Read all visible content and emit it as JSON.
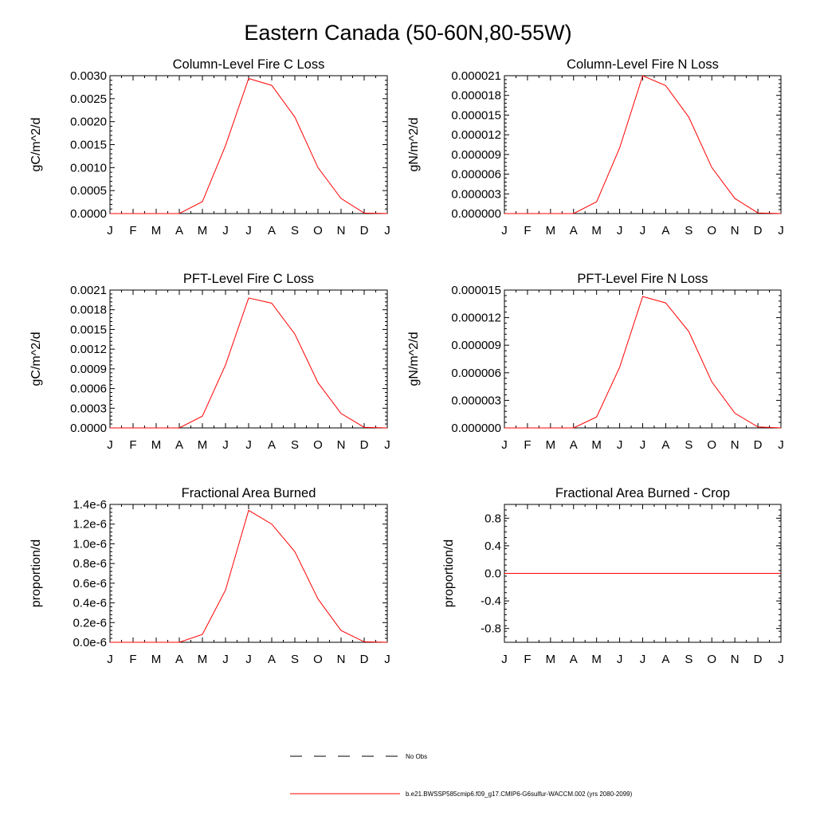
{
  "main_title": "Eastern Canada (50-60N,80-55W)",
  "legend": {
    "entries": [
      {
        "label": "No Obs",
        "style": "dashed",
        "color": "#000000"
      },
      {
        "label": "b.e21.BWSSP585cmip6.f09_g17.CMIP6-G6sulfur-WACCM.002 (yrs 2080-2099)",
        "style": "solid",
        "color": "#ff0000"
      }
    ]
  },
  "colors": {
    "series": "#ff0000",
    "axes": "#000000"
  },
  "chart_data": [
    {
      "type": "line",
      "title": "Column-Level Fire C Loss",
      "ylabel": "gC/m^2/d",
      "x": [
        "J",
        "F",
        "M",
        "A",
        "M",
        "J",
        "J",
        "A",
        "S",
        "O",
        "N",
        "D",
        "J"
      ],
      "ylim": [
        0,
        0.003
      ],
      "yticks": [
        0,
        0.0005,
        0.001,
        0.0015,
        0.002,
        0.0025,
        0.003
      ],
      "ytick_labels": [
        "0.0000",
        "0.0005",
        "0.0010",
        "0.0015",
        "0.0020",
        "0.0025",
        "0.0030"
      ],
      "series": [
        {
          "values": [
            0,
            0,
            0,
            0,
            0.00026,
            0.00148,
            0.00294,
            0.00279,
            0.0021,
            0.001,
            0.00033,
            1e-05,
            0
          ]
        }
      ]
    },
    {
      "type": "line",
      "title": "Column-Level Fire N Loss",
      "ylabel": "gN/m^2/d",
      "x": [
        "J",
        "F",
        "M",
        "A",
        "M",
        "J",
        "J",
        "A",
        "S",
        "O",
        "N",
        "D",
        "J"
      ],
      "ylim": [
        0,
        2.1e-05
      ],
      "yticks": [
        0,
        3e-06,
        6e-06,
        9e-06,
        1.2e-05,
        1.5e-05,
        1.8e-05,
        2.1e-05
      ],
      "ytick_labels": [
        "0.000000",
        "0.000003",
        "0.000006",
        "0.000009",
        "0.000012",
        "0.000015",
        "0.000018",
        "0.000021"
      ],
      "series": [
        {
          "values": [
            0,
            0,
            0,
            0,
            1.8e-06,
            1e-05,
            2.1e-05,
            1.95e-05,
            1.47e-05,
            7e-06,
            2.3e-06,
            1e-07,
            0
          ]
        }
      ]
    },
    {
      "type": "line",
      "title": "PFT-Level Fire C Loss",
      "ylabel": "gC/m^2/d",
      "x": [
        "J",
        "F",
        "M",
        "A",
        "M",
        "J",
        "J",
        "A",
        "S",
        "O",
        "N",
        "D",
        "J"
      ],
      "ylim": [
        0,
        0.0021
      ],
      "yticks": [
        0,
        0.0003,
        0.0006,
        0.0009,
        0.0012,
        0.0015,
        0.0018,
        0.0021
      ],
      "ytick_labels": [
        "0.0000",
        "0.0003",
        "0.0006",
        "0.0009",
        "0.0012",
        "0.0015",
        "0.0018",
        "0.0021"
      ],
      "series": [
        {
          "values": [
            0,
            0,
            0,
            0,
            0.00018,
            0.00096,
            0.00198,
            0.0019,
            0.00143,
            0.00069,
            0.00022,
            1e-05,
            0
          ]
        }
      ]
    },
    {
      "type": "line",
      "title": "PFT-Level Fire N Loss",
      "ylabel": "gN/m^2/d",
      "x": [
        "J",
        "F",
        "M",
        "A",
        "M",
        "J",
        "J",
        "A",
        "S",
        "O",
        "N",
        "D",
        "J"
      ],
      "ylim": [
        0,
        1.5e-05
      ],
      "yticks": [
        0,
        3e-06,
        6e-06,
        9e-06,
        1.2e-05,
        1.5e-05
      ],
      "ytick_labels": [
        "0.000000",
        "0.000003",
        "0.000006",
        "0.000009",
        "0.000012",
        "0.000015"
      ],
      "series": [
        {
          "values": [
            0,
            0,
            0,
            0,
            1.2e-06,
            6.6e-06,
            1.43e-05,
            1.36e-05,
            1.05e-05,
            5e-06,
            1.6e-06,
            1e-07,
            0
          ]
        }
      ]
    },
    {
      "type": "line",
      "title": "Fractional Area Burned",
      "ylabel": "proportion/d",
      "x": [
        "J",
        "F",
        "M",
        "A",
        "M",
        "J",
        "J",
        "A",
        "S",
        "O",
        "N",
        "D",
        "J"
      ],
      "ylim": [
        0,
        1.4e-06
      ],
      "yticks": [
        0,
        2e-07,
        4e-07,
        6e-07,
        8e-07,
        1e-06,
        1.2e-06,
        1.4e-06
      ],
      "ytick_labels": [
        "0.0e-6",
        "0.2e-6",
        "0.4e-6",
        "0.6e-6",
        "0.8e-6",
        "1.0e-6",
        "1.2e-6",
        "1.4e-6"
      ],
      "series": [
        {
          "values": [
            0,
            0,
            0,
            0,
            8e-08,
            5.3e-07,
            1.34e-06,
            1.2e-06,
            9.2e-07,
            4.4e-07,
            1.2e-07,
            5e-09,
            0
          ]
        }
      ]
    },
    {
      "type": "line",
      "title": "Fractional Area Burned - Crop",
      "ylabel": "proportion/d",
      "x": [
        "J",
        "F",
        "M",
        "A",
        "M",
        "J",
        "J",
        "A",
        "S",
        "O",
        "N",
        "D",
        "J"
      ],
      "ylim": [
        -1,
        1
      ],
      "yticks": [
        -0.8,
        -0.4,
        0,
        0.4,
        0.8
      ],
      "ytick_labels": [
        "-0.8",
        "-0.4",
        "0.0",
        "0.4",
        "0.8"
      ],
      "series": [
        {
          "values": [
            0,
            0,
            0,
            0,
            0,
            0,
            0,
            0,
            0,
            0,
            0,
            0,
            0
          ]
        }
      ]
    }
  ]
}
